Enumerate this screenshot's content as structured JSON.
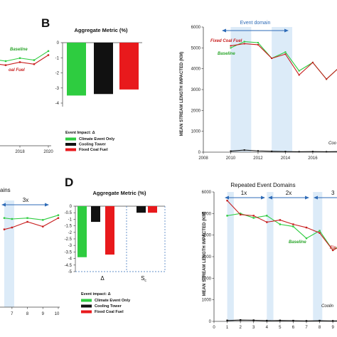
{
  "labels": {
    "panel_b": "B",
    "panel_d": "D",
    "agg_title_b": "Aggregate Metric (%)",
    "agg_title_d": "Aggregate Metric (%)",
    "ylabel_b": "MEAN STREAM LENGTH IMPACTED (KM)",
    "ylabel_d": "MEAN STREAM LENGTH IMPACTED (KM)",
    "event_domain": "Event domain",
    "repeated_domains": "Repeated Event Domains",
    "dom_1x": "1x",
    "dom_2x": "2x",
    "dom_3x_d": "3",
    "dom_3x_c": "3x",
    "domains_partial": "ains",
    "baseline_a": "Baseline",
    "fixed_a": "oal Fuel",
    "baseline_b": "Baseline",
    "fixed_b": "Fixed Coal Fuel",
    "cool_b": "Coo",
    "baseline_d": "Baseline",
    "fixed_d": "Fix",
    "cool_d": "Coolin",
    "delta_label": "Δ",
    "sc_label": "S",
    "sc_sub": "c"
  },
  "legend_b": {
    "title": "Event Impact: Δ",
    "items": [
      "Climate Event Only",
      "Cooling Tower",
      "Fixed Coal Fuel"
    ],
    "colors": [
      "#2ecc40",
      "#111111",
      "#e8191c"
    ]
  },
  "legend_d": {
    "title": "Event impact: Δ",
    "items": [
      "Climate Event Only",
      "Cooling Tower",
      "Fixed Coal Fuel"
    ],
    "colors": [
      "#2ecc40",
      "#111111",
      "#e8191c"
    ]
  },
  "chart_data": [
    {
      "type": "line",
      "panel": "A (partial)",
      "x": [
        2016,
        2017,
        2018,
        2019,
        2020
      ],
      "xticks": [
        "2018",
        "2020"
      ],
      "series": [
        {
          "name": "Baseline",
          "color": "#2ecc40",
          "values": [
            4300,
            4200,
            4350,
            4250,
            4700
          ]
        },
        {
          "name": "Fixed Coal Fuel",
          "color": "#c81e1e",
          "values": [
            4100,
            4000,
            4150,
            4050,
            4500
          ]
        }
      ]
    },
    {
      "type": "bar",
      "panel": "B-inset",
      "title": "Aggregate Metric (%)",
      "categories": [
        "Climate Event Only",
        "Cooling Tower",
        "Fixed Coal Fuel"
      ],
      "values": [
        -3.5,
        -3.4,
        -3.1
      ],
      "colors": [
        "#2ecc40",
        "#111111",
        "#e8191c"
      ],
      "ylim": [
        -4,
        0
      ],
      "yticks": [
        "0",
        "-1",
        "-2",
        "-3",
        "-4"
      ]
    },
    {
      "type": "line",
      "panel": "B",
      "ylabel": "MEAN STREAM LENGTH IMPACTED (KM)",
      "xlim": [
        2008,
        2018.5
      ],
      "ylim": [
        0,
        6000
      ],
      "xticks": [
        "2008",
        "2010",
        "2012",
        "2014",
        "2016",
        "2018",
        "201"
      ],
      "yticks": [
        "0",
        "1000",
        "2000",
        "3000",
        "4000",
        "5000",
        "6000"
      ],
      "shaded_x": [
        [
          2010,
          2011.5
        ],
        [
          2013,
          2014.5
        ]
      ],
      "series": [
        {
          "name": "Baseline",
          "color": "#2ecc40",
          "x": [
            2010,
            2011,
            2012,
            2013,
            2014,
            2015,
            2016,
            2017,
            2018
          ],
          "values": [
            5000,
            5300,
            5250,
            4500,
            4800,
            3900,
            4300,
            3500,
            4100
          ]
        },
        {
          "name": "Fixed Coal Fuel",
          "color": "#c81e1e",
          "x": [
            2010,
            2011,
            2012,
            2013,
            2014,
            2015,
            2016,
            2017,
            2018
          ],
          "values": [
            5100,
            5200,
            5150,
            4500,
            4700,
            3700,
            4300,
            3500,
            4100
          ]
        },
        {
          "name": "Cooling Tower",
          "color": "#111111",
          "x": [
            2010,
            2011,
            2012,
            2013,
            2014,
            2015,
            2016,
            2017,
            2018
          ],
          "values": [
            50,
            100,
            60,
            40,
            30,
            20,
            30,
            20,
            30
          ]
        }
      ]
    },
    {
      "type": "line",
      "panel": "C (partial)",
      "x": [
        6.5,
        7,
        8,
        9,
        10
      ],
      "xticks": [
        "7",
        "8",
        "9",
        "10"
      ],
      "series": [
        {
          "name": "Baseline",
          "color": "#2ecc40",
          "values": [
            4700,
            4650,
            4700,
            4600,
            4850
          ]
        },
        {
          "name": "Fixed Coal Fuel",
          "color": "#c81e1e",
          "values": [
            4100,
            4200,
            4500,
            4250,
            4700
          ]
        }
      ]
    },
    {
      "type": "bar",
      "panel": "D-inset",
      "title": "Aggregate Metric (%)",
      "categories": [
        "Δ",
        "Sc"
      ],
      "series": [
        {
          "name": "Climate Event Only",
          "color": "#2ecc40",
          "values": [
            -3.9,
            0.0
          ]
        },
        {
          "name": "Cooling Tower",
          "color": "#111111",
          "values": [
            -1.2,
            -0.5
          ]
        },
        {
          "name": "Fixed Coal Fuel",
          "color": "#e8191c",
          "values": [
            -3.7,
            -0.5
          ]
        }
      ],
      "ylim": [
        -5,
        0
      ],
      "yticks": [
        "0",
        "-0.5",
        "-1",
        "-1.5",
        "-2",
        "-2.5",
        "-3",
        "-3.5",
        "-4",
        "-4.5",
        "-5"
      ]
    },
    {
      "type": "line",
      "panel": "D",
      "title": "Repeated Event Domains",
      "ylabel": "MEAN STREAM LENGTH IMPACTED (KM)",
      "xlim": [
        0,
        10.5
      ],
      "ylim": [
        0,
        6000
      ],
      "xticks": [
        "0",
        "1",
        "2",
        "3",
        "4",
        "5",
        "6",
        "7",
        "8",
        "9",
        "10"
      ],
      "yticks": [
        "0",
        "1000",
        "2000",
        "3000",
        "4000",
        "5000",
        "6000"
      ],
      "shaded_x": [
        [
          1,
          1.5
        ],
        [
          4,
          4.5
        ],
        [
          7.5,
          8.2
        ]
      ],
      "series": [
        {
          "name": "Baseline",
          "color": "#2ecc40",
          "x": [
            1,
            2,
            3,
            4,
            5,
            6,
            7,
            8,
            9,
            10
          ],
          "values": [
            4900,
            5000,
            4800,
            4900,
            4500,
            4400,
            3850,
            4200,
            3300,
            3700
          ]
        },
        {
          "name": "Fixed Coal Fuel",
          "color": "#c81e1e",
          "x": [
            1,
            2,
            3,
            4,
            5,
            6,
            7,
            8,
            9,
            10
          ],
          "values": [
            5600,
            4950,
            4900,
            4600,
            4700,
            4500,
            4350,
            4100,
            3300,
            3600
          ]
        },
        {
          "name": "Cooling Tower",
          "color": "#111111",
          "x": [
            1,
            2,
            3,
            4,
            5,
            6,
            7,
            8,
            9,
            10
          ],
          "values": [
            40,
            60,
            50,
            30,
            40,
            30,
            20,
            30,
            20,
            30
          ]
        }
      ]
    }
  ]
}
